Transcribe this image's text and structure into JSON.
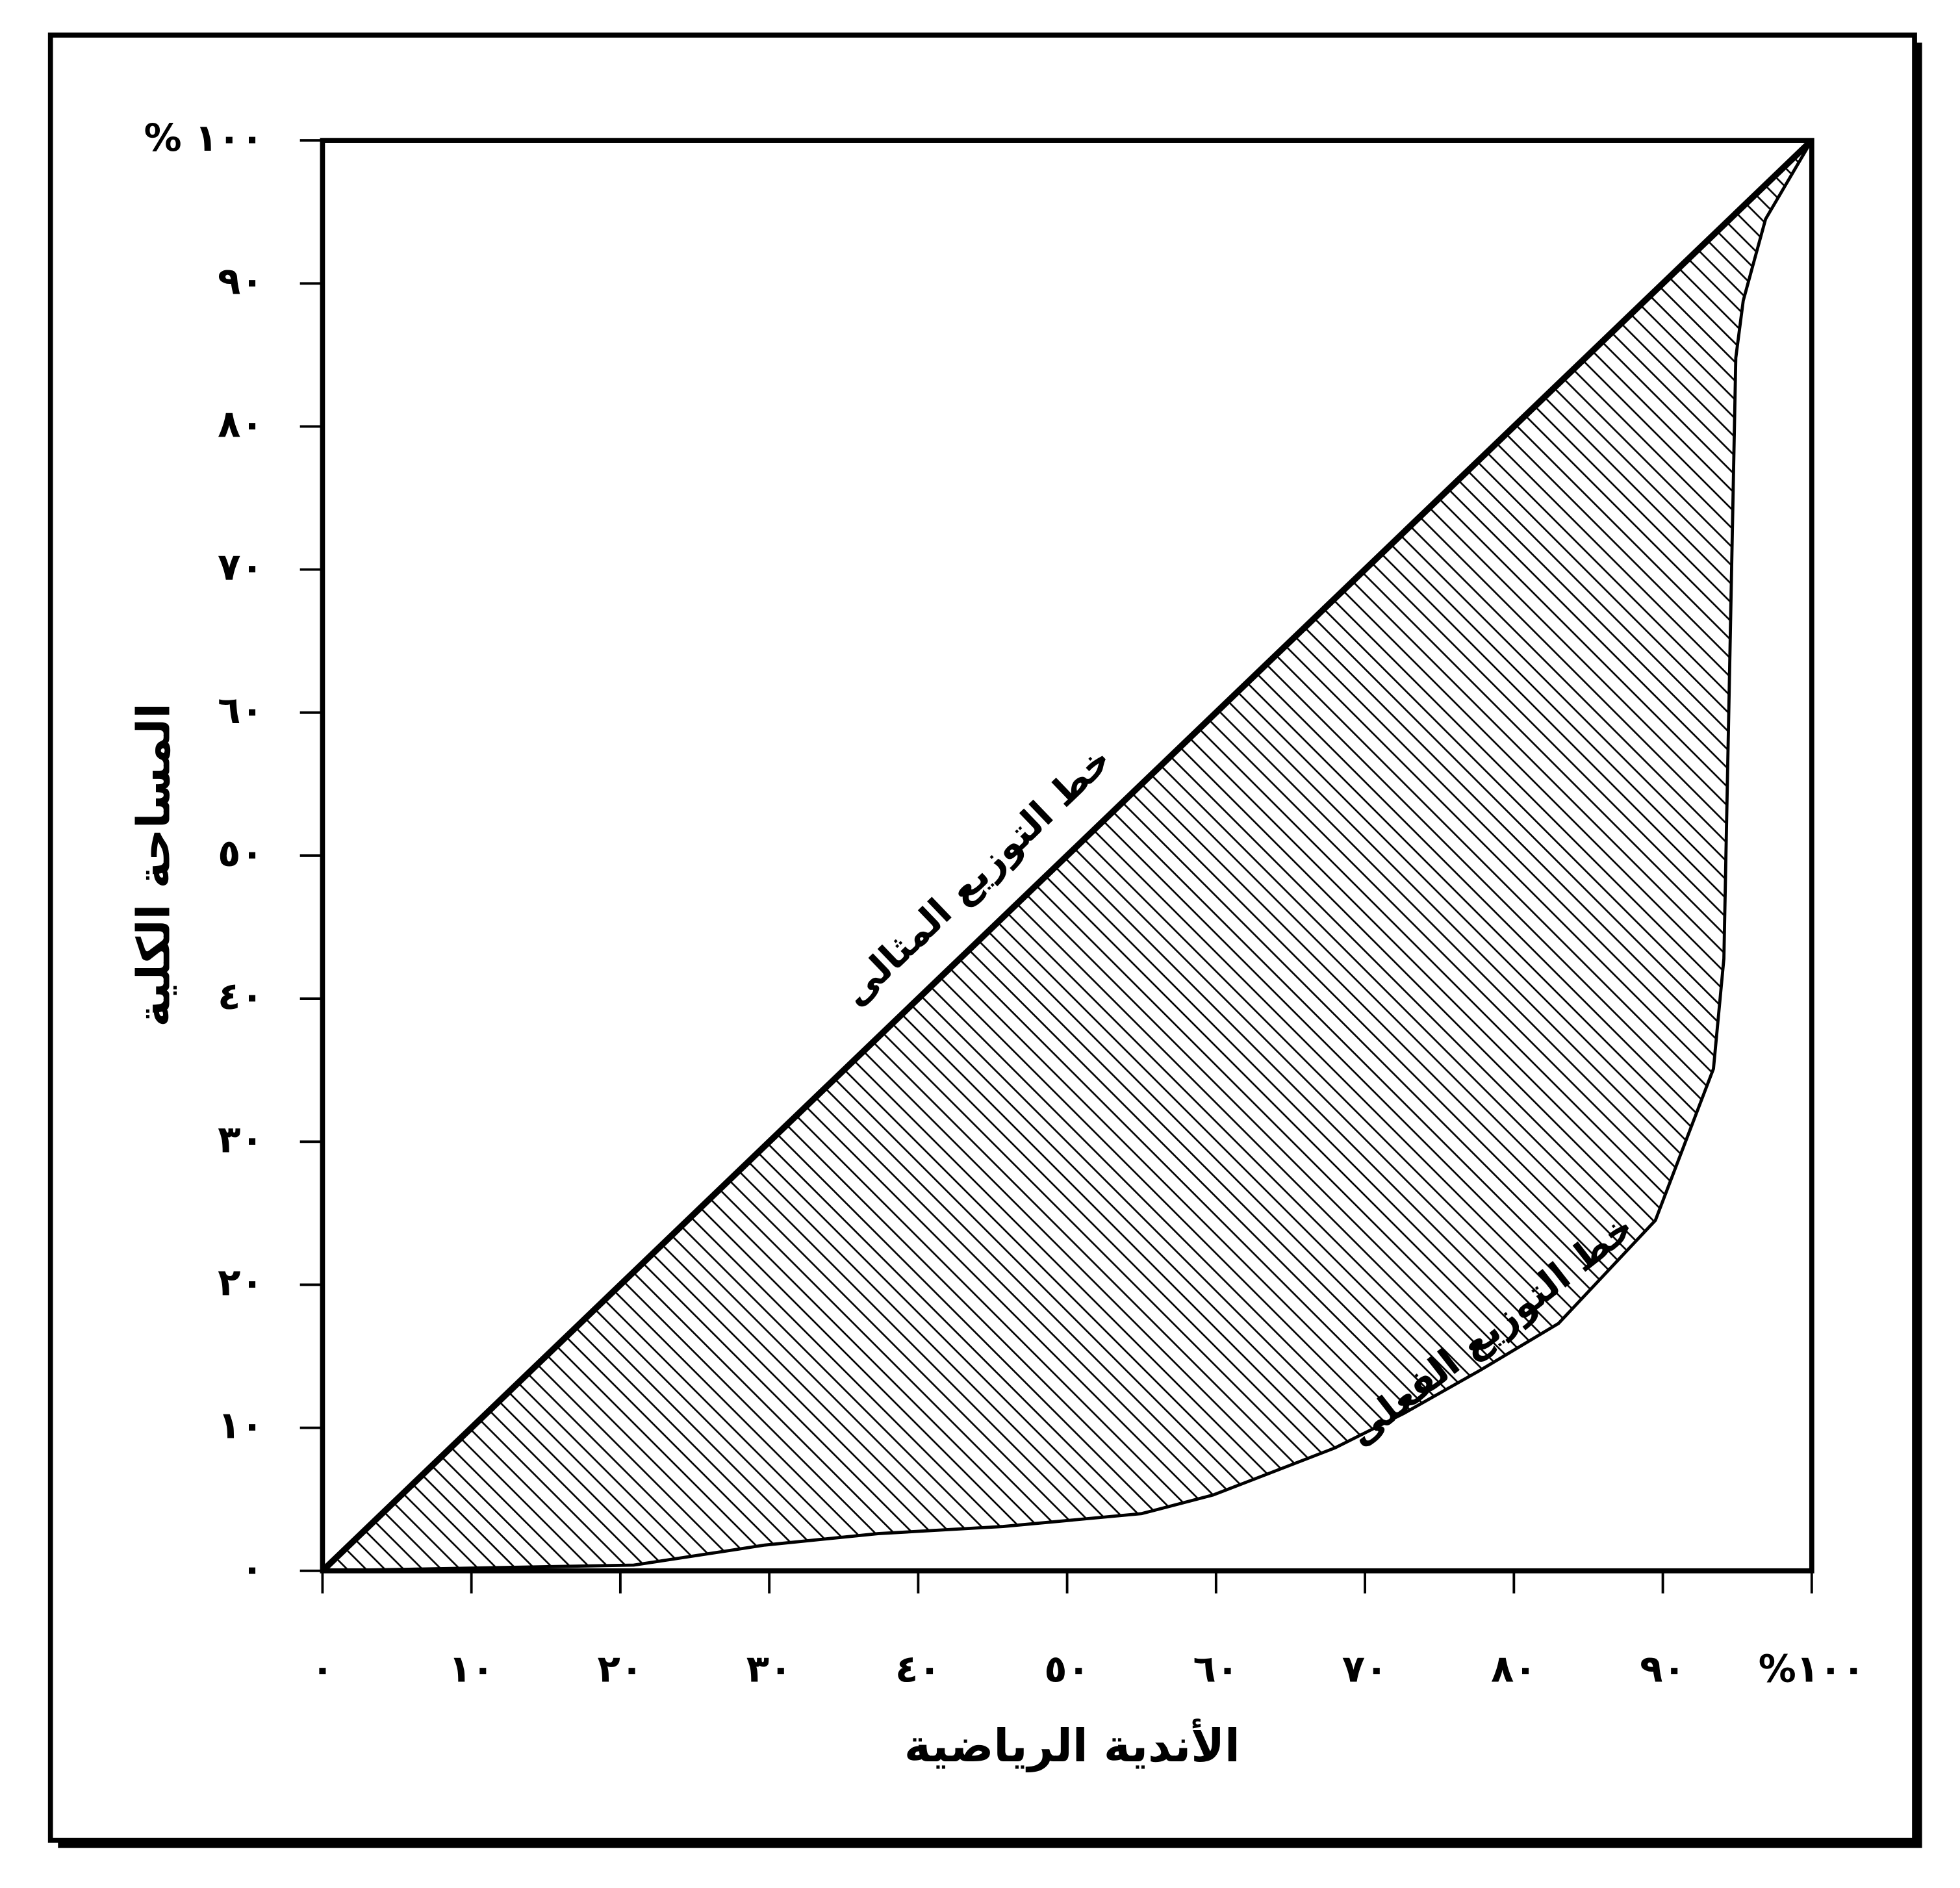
{
  "chart_data": {
    "type": "line",
    "x_label": "الأندية الرياضية",
    "y_label": "المساحة الكلية",
    "xlim": [
      0,
      100
    ],
    "ylim": [
      0,
      100
    ],
    "xticks": [
      {
        "value": 0,
        "label": "٠"
      },
      {
        "value": 10,
        "label": "١٠"
      },
      {
        "value": 20,
        "label": "٢٠"
      },
      {
        "value": 30,
        "label": "٣٠"
      },
      {
        "value": 40,
        "label": "٤٠"
      },
      {
        "value": 50,
        "label": "٥٠"
      },
      {
        "value": 60,
        "label": "٦٠"
      },
      {
        "value": 70,
        "label": "٧٠"
      },
      {
        "value": 80,
        "label": "٨٠"
      },
      {
        "value": 90,
        "label": "٩٠"
      },
      {
        "value": 100,
        "label": "%١٠٠"
      }
    ],
    "yticks": [
      {
        "value": 0,
        "label": "٠"
      },
      {
        "value": 10,
        "label": "١٠"
      },
      {
        "value": 20,
        "label": "٢٠"
      },
      {
        "value": 30,
        "label": "٣٠"
      },
      {
        "value": 40,
        "label": "٤٠"
      },
      {
        "value": 50,
        "label": "٥٠"
      },
      {
        "value": 60,
        "label": "٦٠"
      },
      {
        "value": 70,
        "label": "٧٠"
      },
      {
        "value": 80,
        "label": "٨٠"
      },
      {
        "value": 90,
        "label": "٩٠"
      },
      {
        "value": 100,
        "label": "% ١٠٠"
      }
    ],
    "grid": false,
    "hatch": true,
    "series": [
      {
        "name": "خط التوزيع المثالى",
        "color": "#000000",
        "x": [
          0,
          100
        ],
        "values": [
          0,
          100
        ]
      },
      {
        "name": "خط التوزيع الفعلى",
        "color": "#000000",
        "x": [
          0,
          20.9,
          29.7,
          37.3,
          45.7,
          55,
          59.8,
          68,
          72.6,
          77.7,
          83,
          89.5,
          93.4,
          94.1,
          94.9,
          95.4,
          96.9,
          100
        ],
        "values": [
          0,
          0.4,
          1.8,
          2.6,
          3.1,
          4,
          5.3,
          8.6,
          11,
          14,
          17.3,
          24.5,
          35.1,
          42.8,
          84.8,
          88.8,
          94.5,
          100
        ]
      }
    ]
  }
}
